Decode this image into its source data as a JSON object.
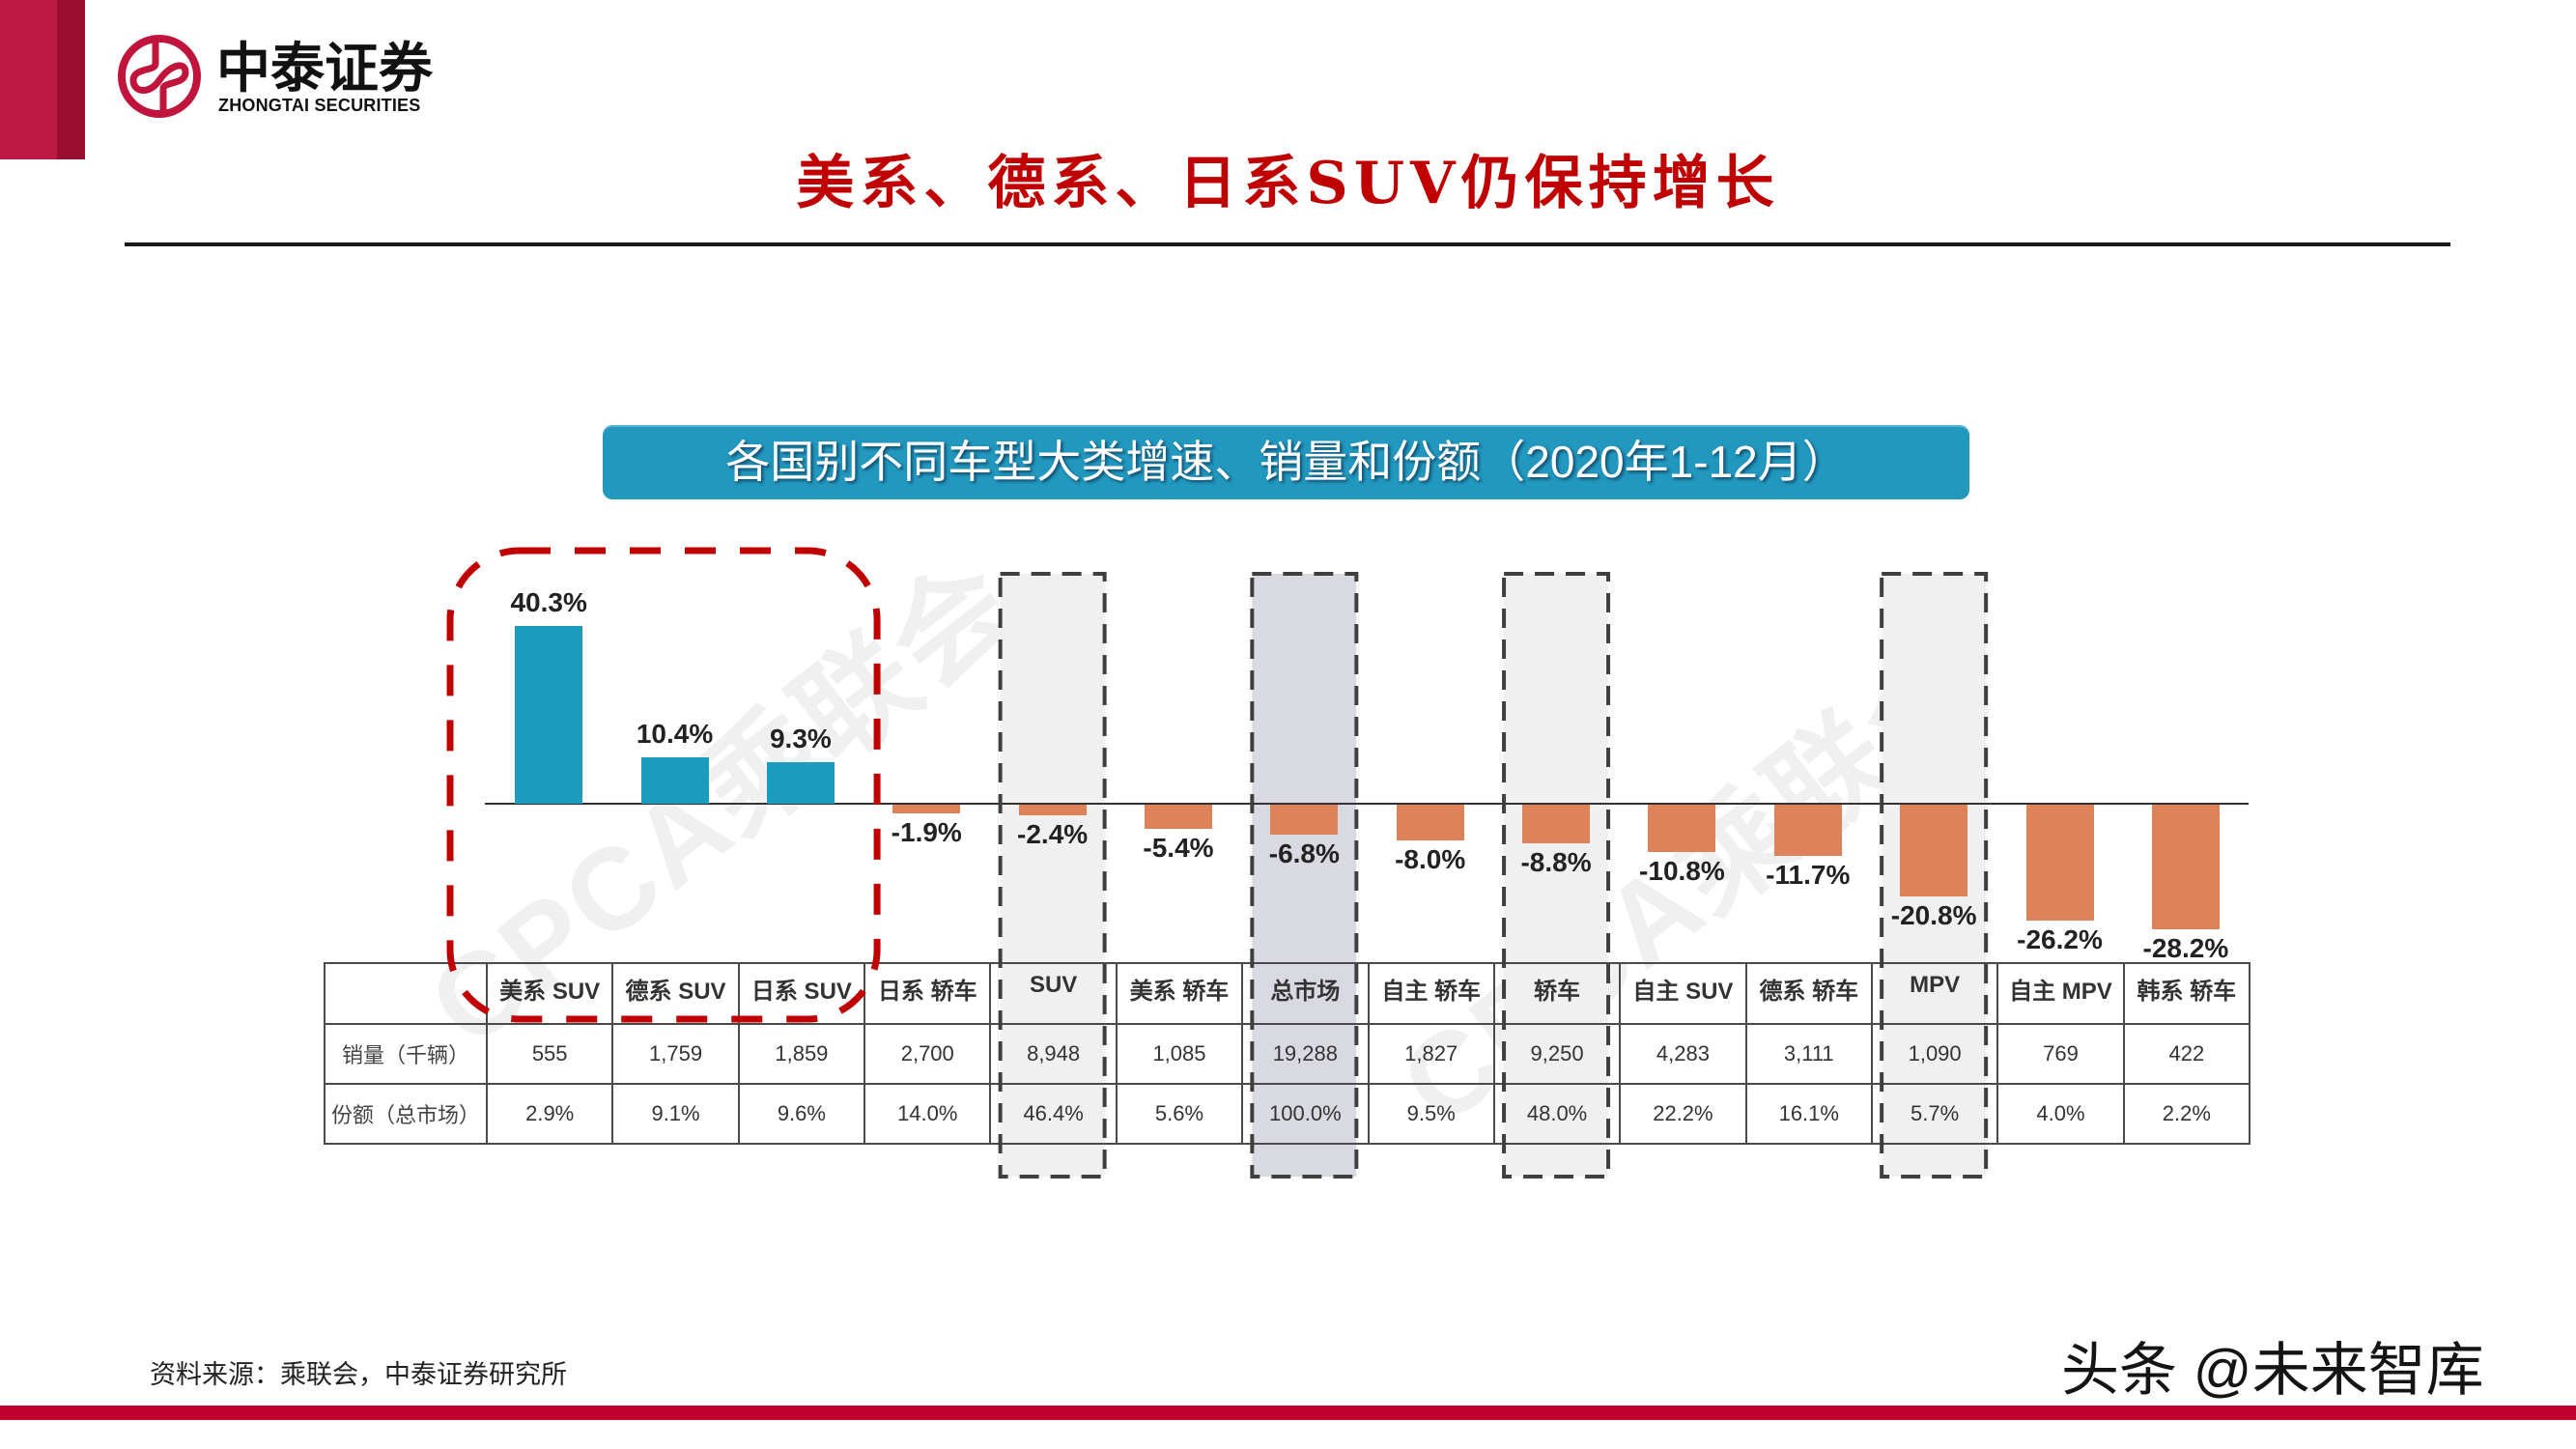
{
  "header": {
    "logo_cn": "中泰证券",
    "logo_en": "ZHONGTAI SECURITIES",
    "title": "美系、德系、日系SUV仍保持增长"
  },
  "colors": {
    "brand_red": "#be1844",
    "brand_red_dark": "#9b0d2f",
    "logo_red": "#c0143c",
    "title_red": "#c00000",
    "banner_blue": "#2298bf",
    "bar_positive": "#1b9bc0",
    "bar_negative": "#dd8259",
    "highlight_red": "#c00000",
    "highlight_gray_stroke": "#3f3f3f",
    "footer_red": "#c0002e"
  },
  "highlights": {
    "red_box": {
      "from": 0,
      "to": 2
    },
    "gray_boxes": [
      {
        "index": 4,
        "fill": "#f0f0f0"
      },
      {
        "index": 6,
        "fill": "#d9d9e1"
      },
      {
        "index": 8,
        "fill": "#f0f0f0"
      },
      {
        "index": 11,
        "fill": "#f0f0f0"
      }
    ]
  },
  "chart_data": {
    "type": "bar",
    "title": "各国别不同车型大类增速、销量和份额（2020年1-12月）",
    "categories": [
      "美系 SUV",
      "德系 SUV",
      "日系 SUV",
      "日系 轿车",
      "SUV",
      "美系 轿车",
      "总市场",
      "自主 轿车",
      "轿车",
      "自主 SUV",
      "德系 轿车",
      "MPV",
      "自主 MPV",
      "韩系 轿车"
    ],
    "series": [
      {
        "name": "增速",
        "values": [
          40.3,
          10.4,
          9.3,
          -1.9,
          -2.4,
          -5.4,
          -6.8,
          -8.0,
          -8.8,
          -10.8,
          -11.7,
          -20.8,
          -26.2,
          -28.2
        ]
      }
    ],
    "value_labels": [
      "40.3%",
      "10.4%",
      "9.3%",
      "-1.9%",
      "-2.4%",
      "-5.4%",
      "-6.8%",
      "-8.0%",
      "-8.8%",
      "-10.8%",
      "-11.7%",
      "-20.8%",
      "-26.2%",
      "-28.2%"
    ],
    "table_rows": [
      {
        "label": "销量（千辆）",
        "values": [
          "555",
          "1,759",
          "1,859",
          "2,700",
          "8,948",
          "1,085",
          "19,288",
          "1,827",
          "9,250",
          "4,283",
          "3,111",
          "1,090",
          "769",
          "422"
        ]
      },
      {
        "label": "份额（总市场）",
        "values": [
          "2.9%",
          "9.1%",
          "9.6%",
          "14.0%",
          "46.4%",
          "5.6%",
          "100.0%",
          "9.5%",
          "48.0%",
          "22.2%",
          "16.1%",
          "5.7%",
          "4.0%",
          "2.2%"
        ]
      }
    ],
    "xlabel": "",
    "ylabel": "",
    "ylim": [
      -30,
      45
    ],
    "grid": false,
    "legend": null,
    "annotations": {
      "red_dashed_box_categories": [
        "美系 SUV",
        "德系 SUV",
        "日系 SUV"
      ],
      "gray_dashed_box_categories": [
        "SUV",
        "总市场",
        "轿车",
        "MPV"
      ]
    },
    "watermark": "CPCA乘联会"
  },
  "footer": {
    "source": "资料来源：乘联会，中泰证券研究所",
    "watermark": "头条 @未来智库"
  }
}
